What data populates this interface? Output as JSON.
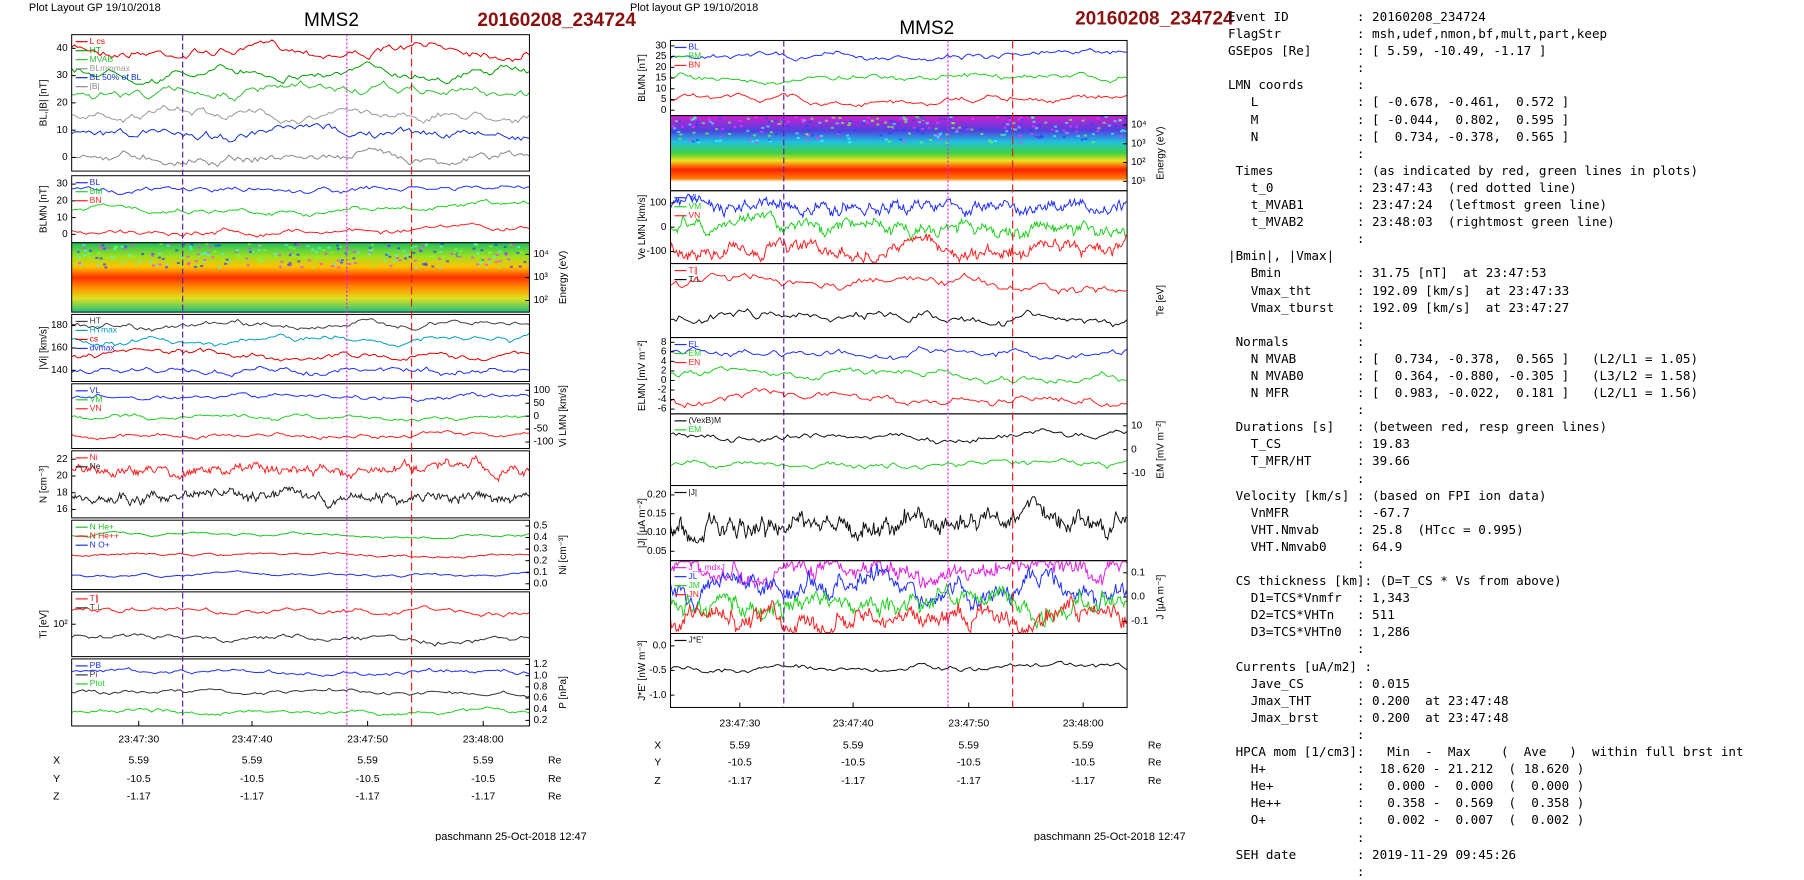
{
  "left_plot": {
    "header": "Plot Layout GP 19/10/2018",
    "title": "MMS2",
    "event": "20160208_234724",
    "panels": [
      {
        "ylabel": "BL,|B| [nT]",
        "ticks": [
          "40",
          "30",
          "20",
          "10",
          "0"
        ],
        "legend": [
          {
            "name": "L cs",
            "color": "#e00000"
          },
          {
            "name": "HT",
            "color": "#00a000"
          },
          {
            "name": "MVAB",
            "color": "#30c030"
          },
          {
            "name": "BLminmax",
            "color": "#999999"
          },
          {
            "name": "BL 50% of BL",
            "color": "#1030d0"
          },
          {
            "name": "|B|",
            "color": "#888888"
          }
        ]
      },
      {
        "ylabel": "BLMN [nT]",
        "ticks": [
          "30",
          "20",
          "10",
          "0"
        ],
        "legend": [
          {
            "name": "BL",
            "color": "#2030ff"
          },
          {
            "name": "BM",
            "color": "#20d020"
          },
          {
            "name": "BN",
            "color": "#ff2020"
          }
        ]
      },
      {
        "ylabel": "Energy (eV)",
        "ticks": [
          "10⁴",
          "10³",
          "10²"
        ],
        "legend": []
      },
      {
        "ylabel": "|Vi| [km/s]",
        "ticks": [
          "180",
          "160",
          "140"
        ],
        "legend": [
          {
            "name": "HT",
            "color": "#404040"
          },
          {
            "name": "HTmax",
            "color": "#00a0c0"
          },
          {
            "name": "cs",
            "color": "#e00000"
          },
          {
            "name": "dvmax",
            "color": "#2030ff"
          }
        ]
      },
      {
        "ylabel": "Vi LMN [km/s]",
        "ticks": [
          "100",
          "50",
          "0",
          "-50",
          "-100"
        ],
        "legend": [
          {
            "name": "VL",
            "color": "#2030ff"
          },
          {
            "name": "VM",
            "color": "#20d020"
          },
          {
            "name": "VN",
            "color": "#ff2020"
          }
        ]
      },
      {
        "ylabel": "N [cm⁻³]",
        "ticks": [
          "22",
          "20",
          "18",
          "16"
        ],
        "legend": [
          {
            "name": "Ni",
            "color": "#ff2020"
          },
          {
            "name": "Ne",
            "color": "#222222"
          }
        ]
      },
      {
        "ylabel": "Ni [cm⁻³]",
        "ticks": [
          "0.5",
          "0.4",
          "0.3",
          "0.2",
          "0.1",
          "0.0"
        ],
        "legend": [
          {
            "name": "N He+",
            "color": "#20c020"
          },
          {
            "name": "N He++",
            "color": "#e02020"
          },
          {
            "name": "N O+",
            "color": "#2030e0"
          }
        ]
      },
      {
        "ylabel": "Ti [eV]",
        "ticks": [
          "10²"
        ],
        "legend": [
          {
            "name": "T∥",
            "color": "#ff2020"
          },
          {
            "name": "T⊥",
            "color": "#333333"
          }
        ]
      },
      {
        "ylabel": "P [nPa]",
        "ticks": [
          "1.2",
          "1.0",
          "0.8",
          "0.6",
          "0.4",
          "0.2"
        ],
        "legend": [
          {
            "name": "PB",
            "color": "#2030ff"
          },
          {
            "name": "Pi",
            "color": "#333333"
          },
          {
            "name": "Ptot",
            "color": "#20d020"
          }
        ]
      }
    ],
    "xticks": [
      "23:47:30",
      "23:47:40",
      "23:47:50",
      "23:48:00"
    ],
    "position": [
      [
        "X",
        "5.59",
        "5.59",
        "5.59",
        "5.59",
        "Re"
      ],
      [
        "Y",
        "-10.5",
        "-10.5",
        "-10.5",
        "-10.5",
        "Re"
      ],
      [
        "Z",
        "-1.17",
        "-1.17",
        "-1.17",
        "-1.17",
        "Re"
      ]
    ],
    "footer": "paschmann 25-Oct-2018 12:47"
  },
  "right_plot": {
    "header": "Plot layout GP 19/10/2018",
    "title": "MMS2",
    "event": "20160208_234724",
    "panels": [
      {
        "ylabel": "BLMN [nT]",
        "ticks": [
          "30",
          "25",
          "20",
          "15",
          "10",
          "5",
          "0"
        ],
        "legend": [
          {
            "name": "BL",
            "color": "#2030ff"
          },
          {
            "name": "BM",
            "color": "#20d020"
          },
          {
            "name": "BN",
            "color": "#ff2020"
          }
        ]
      },
      {
        "ylabel": "Energy (eV)",
        "ticks": [
          "10⁴",
          "10³",
          "10²",
          "10¹"
        ],
        "legend": []
      },
      {
        "ylabel": "Ve LMN [km/s]",
        "ticks": [
          "100",
          "0",
          "-100"
        ],
        "legend": [
          {
            "name": "VL",
            "color": "#2030ff"
          },
          {
            "name": "VM",
            "color": "#20d020"
          },
          {
            "name": "VN",
            "color": "#ff2020"
          }
        ]
      },
      {
        "ylabel": "Te [eV]",
        "ticks": [],
        "legend": [
          {
            "name": "T∥",
            "color": "#ff2020"
          },
          {
            "name": "T⊥",
            "color": "#111111"
          }
        ]
      },
      {
        "ylabel": "ELMN [mV m⁻²]",
        "ticks": [
          "8",
          "6",
          "4",
          "2",
          "0",
          "-2",
          "-4",
          "-6"
        ],
        "legend": [
          {
            "name": "EL",
            "color": "#2030ff"
          },
          {
            "name": "EM",
            "color": "#20d020"
          },
          {
            "name": "EN",
            "color": "#ff2020"
          }
        ]
      },
      {
        "ylabel": "EM [mV m⁻²]",
        "ticks": [
          "10",
          "0",
          "-10"
        ],
        "legend": [
          {
            "name": "(VexB)M",
            "color": "#111111"
          },
          {
            "name": "EM",
            "color": "#20d020"
          }
        ]
      },
      {
        "ylabel": "|J| [μA m⁻²]",
        "ticks": [
          "0.20",
          "0.15",
          "0.10",
          "0.05"
        ],
        "legend": [
          {
            "name": "|J|",
            "color": "#111111"
          }
        ]
      },
      {
        "ylabel": "J [μA m⁻²]",
        "ticks": [
          "0.1",
          "0.0",
          "-0.1"
        ],
        "legend": [
          {
            "name": "J_t_mdxJ",
            "color": "#e020e0"
          },
          {
            "name": "JL",
            "color": "#2030ff"
          },
          {
            "name": "JM",
            "color": "#20d020"
          },
          {
            "name": "JN",
            "color": "#ff2020"
          }
        ]
      },
      {
        "ylabel": "J*E' [nW m⁻³]",
        "ticks": [
          "0.0",
          "-0.5",
          "-1.0"
        ],
        "legend": [
          {
            "name": "J*E'",
            "color": "#111111"
          }
        ]
      }
    ],
    "xticks": [
      "23:47:30",
      "23:47:40",
      "23:47:50",
      "23:48:00"
    ],
    "position": [
      [
        "X",
        "5.59",
        "5.59",
        "5.59",
        "5.59",
        "Re"
      ],
      [
        "Y",
        "-10.5",
        "-10.5",
        "-10.5",
        "-10.5",
        "Re"
      ],
      [
        "Z",
        "-1.17",
        "-1.17",
        "-1.17",
        "-1.17",
        "Re"
      ]
    ],
    "footer": "paschmann 25-Oct-2018 12:47"
  },
  "summary": {
    "lines": [
      "Event ID         : 20160208_234724",
      "FlagStr          : msh,udef,nmon,bf,mult,part,keep",
      "GSEpos [Re]      : [ 5.59, -10.49, -1.17 ]",
      "                 :",
      "LMN coords       :",
      "   L             : [ -0.678, -0.461,  0.572 ]",
      "   M             : [ -0.044,  0.802,  0.595 ]",
      "   N             : [  0.734, -0.378,  0.565 ]",
      "                 :",
      " Times           : (as indicated by red, green lines in plots)",
      "   t_0           : 23:47:43  (red dotted line)",
      "   t_MVAB1       : 23:47:24  (leftmost green line)",
      "   t_MVAB2       : 23:48:03  (rightmost green line)",
      "                 :",
      "|Bmin|, |Vmax|",
      "   Bmin          : 31.75 [nT]  at 23:47:53",
      "   Vmax_tht      : 192.09 [km/s]  at 23:47:33",
      "   Vmax_tburst   : 192.09 [km/s]  at 23:47:27",
      "                 :",
      " Normals         :",
      "   N MVAB        : [  0.734, -0.378,  0.565 ]   (L2/L1 = 1.05)",
      "   N MVAB0       : [  0.364, -0.880, -0.305 ]   (L3/L2 = 1.58)",
      "   N MFR         : [  0.983, -0.022,  0.181 ]   (L2/L1 = 1.56)",
      "                 :",
      " Durations [s]   : (between red, resp green lines)",
      "   T_CS          : 19.83",
      "   T_MFR/HT      : 39.66",
      "                 :",
      " Velocity [km/s] : (based on FPI ion data)",
      "   VnMFR         : -67.7",
      "   VHT.Nmvab     : 25.8  (HTcc = 0.995)",
      "   VHT.Nmvab0    : 64.9",
      "                 :",
      " CS thickness [km]: (D=T_CS * Vs from above)",
      "   D1=TCS*Vnmfr  : 1,343",
      "   D2=TCS*VHTn   : 511",
      "   D3=TCS*VHTn0  : 1,286",
      "                 :",
      " Currents [uA/m2] :",
      "   Jave_CS       : 0.015",
      "   Jmax_THT      : 0.200  at 23:47:48",
      "   Jmax_brst     : 0.200  at 23:47:48",
      "                 :",
      " HPCA mom [1/cm3]:   Min  -  Max    (  Ave   )  within full brst int",
      "   H+            :  18.620 - 21.212  ( 18.620 )",
      "   He+           :   0.000 -  0.000  (  0.000 )",
      "   He++          :   0.358 -  0.569  (  0.358 )",
      "   O+            :   0.002 -  0.007  (  0.002 )",
      "                 :",
      " SEH date        : 2019-11-29 09:45:26",
      "                 :"
    ]
  }
}
